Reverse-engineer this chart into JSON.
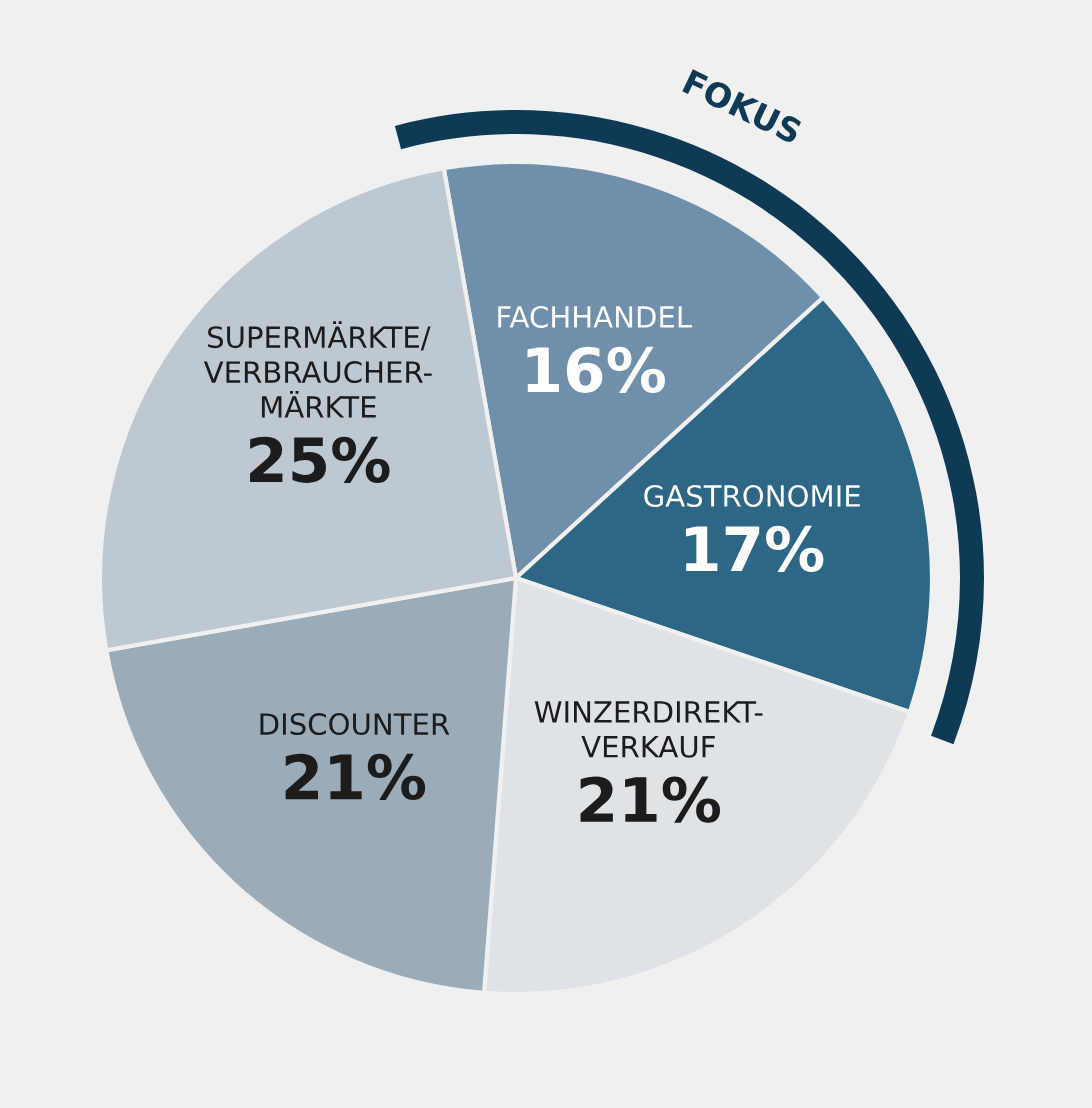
{
  "chart_data": {
    "type": "pie",
    "categories": [
      "FACHHANDEL",
      "GASTRONOMIE",
      "WINZERDIREKT-\nVERKAUF",
      "DISCOUNTER",
      "SUPERMÄRKTE/\nVERBRAUCHER-\nMÄRKTE"
    ],
    "values": [
      16,
      17,
      21,
      21,
      25
    ],
    "colors": [
      "#6f8fab",
      "#2e6686",
      "#dfe3e7",
      "#9babb8",
      "#bec8d1"
    ],
    "value_labels": [
      "16%",
      "17%",
      "21%",
      "21%",
      "25%"
    ],
    "annotations": [
      "FOKUS"
    ],
    "legend": false
  }
}
